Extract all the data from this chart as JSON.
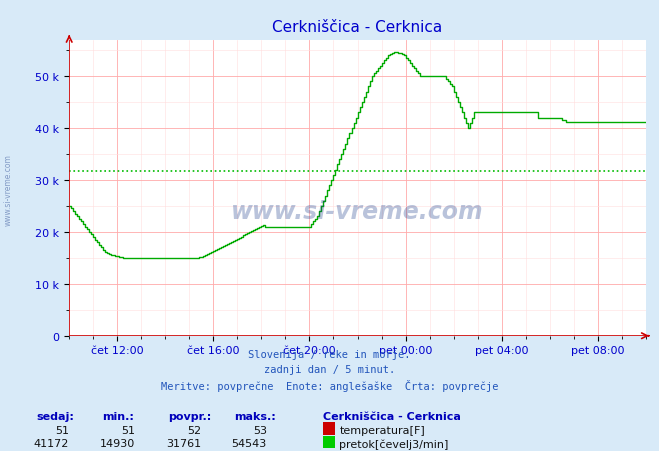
{
  "title": "Cerkniščica - Cerknica",
  "bg_color": "#d8eaf8",
  "plot_bg_color": "#ffffff",
  "grid_color_major": "#ffaaaa",
  "grid_color_minor": "#ffdddd",
  "line_color": "#00aa00",
  "avg_line_color": "#00bb00",
  "avg_value": 31761,
  "ymax": 57000,
  "yticks": [
    0,
    10000,
    20000,
    30000,
    40000,
    50000
  ],
  "ytick_labels": [
    "0",
    "10 k",
    "20 k",
    "30 k",
    "40 k",
    "50 k"
  ],
  "tick_color": "#0000cc",
  "title_color": "#0000cc",
  "subtitle_lines": [
    "Slovenija / reke in morje.",
    "zadnji dan / 5 minut.",
    "Meritve: povprečne  Enote: anglešaške  Črta: povprečje"
  ],
  "temp_row": {
    "sedaj": 51,
    "min": 51,
    "povpr": 52,
    "maks": 53,
    "label": "temperatura[F]",
    "color": "#cc0000"
  },
  "flow_row": {
    "sedaj": 41172,
    "min": 14930,
    "povpr": 31761,
    "maks": 54543,
    "label": "pretok[čevelj3/min]",
    "color": "#00cc00"
  },
  "station_label": "Cerkniščica - Cerknica",
  "xtick_labels": [
    "čet 12:00",
    "čet 16:00",
    "čet 20:00",
    "pet 00:00",
    "pet 04:00",
    "pet 08:00"
  ],
  "xtick_positions": [
    24,
    72,
    120,
    168,
    216,
    264
  ],
  "total_points": 288,
  "watermark": "www.si-vreme.com",
  "flow_data": [
    25000,
    24500,
    24000,
    23500,
    23000,
    22500,
    22000,
    21500,
    21000,
    20500,
    20000,
    19500,
    19000,
    18500,
    18000,
    17500,
    17000,
    16500,
    16200,
    16000,
    15800,
    15600,
    15500,
    15400,
    15300,
    15200,
    15100,
    15050,
    15000,
    14980,
    14960,
    14950,
    14940,
    14935,
    14932,
    14930,
    14930,
    14930,
    14930,
    14930,
    14930,
    14930,
    14930,
    14930,
    14930,
    14930,
    14930,
    14930,
    14930,
    14930,
    14930,
    14930,
    14930,
    14930,
    14930,
    14930,
    14930,
    14930,
    14930,
    14930,
    14930,
    14930,
    14930,
    14930,
    15000,
    15100,
    15200,
    15300,
    15500,
    15700,
    15900,
    16100,
    16300,
    16500,
    16700,
    16900,
    17100,
    17300,
    17500,
    17700,
    17900,
    18100,
    18300,
    18500,
    18700,
    18900,
    19100,
    19300,
    19500,
    19700,
    19900,
    20100,
    20300,
    20500,
    20700,
    20900,
    21100,
    21300,
    21000,
    21000,
    21000,
    21000,
    21000,
    21000,
    21000,
    21000,
    21000,
    21000,
    21000,
    21000,
    21000,
    21000,
    21000,
    21000,
    21000,
    21000,
    21000,
    21000,
    21000,
    21000,
    21000,
    21500,
    22000,
    22500,
    23000,
    24000,
    25000,
    26000,
    27000,
    28000,
    29000,
    30000,
    31000,
    32000,
    33000,
    34000,
    35000,
    36000,
    37000,
    38000,
    39000,
    40000,
    41000,
    42000,
    43000,
    44000,
    45000,
    46000,
    47000,
    48000,
    49000,
    50000,
    50500,
    51000,
    51500,
    52000,
    52500,
    53000,
    53500,
    54000,
    54200,
    54400,
    54543,
    54543,
    54500,
    54400,
    54200,
    54000,
    53500,
    53000,
    52500,
    52000,
    51500,
    51000,
    50500,
    50000,
    50000,
    50000,
    50000,
    50000,
    50000,
    50000,
    50000,
    50000,
    50000,
    50000,
    50000,
    50000,
    49500,
    49000,
    48500,
    48000,
    47000,
    46000,
    45000,
    44000,
    43000,
    42000,
    41000,
    40000,
    41000,
    42000,
    43000,
    43000,
    43000,
    43000,
    43000,
    43000,
    43000,
    43000,
    43000,
    43000,
    43000,
    43000,
    43000,
    43000,
    43000,
    43000,
    43000,
    43000,
    43000,
    43000,
    43000,
    43000,
    43000,
    43000,
    43000,
    43000,
    43000,
    43000,
    43000,
    43000,
    43000,
    43000,
    42000,
    42000,
    42000,
    42000,
    42000,
    42000,
    42000,
    42000,
    42000,
    42000,
    42000,
    42000,
    41500,
    41500,
    41172,
    41172,
    41172,
    41172,
    41172,
    41172,
    41172,
    41172,
    41172,
    41172,
    41172,
    41172,
    41172,
    41172,
    41172,
    41172,
    41172,
    41172,
    41172,
    41172,
    41172,
    41172,
    41172,
    41172,
    41172,
    41172,
    41172,
    41172,
    41172,
    41172,
    41172,
    41172,
    41172,
    41172,
    41172,
    41172,
    41172,
    41172,
    41172,
    41172,
    41172,
    41172,
    41172,
    41172,
    41172,
    41172,
    41172,
    41172,
    41172,
    41172,
    41172,
    41172,
    41172,
    41172,
    41172,
    41172,
    41172,
    41172,
    41172,
    41172,
    41172,
    41172,
    41172,
    41172,
    41172,
    41172,
    41172,
    41172,
    41172,
    41172
  ]
}
